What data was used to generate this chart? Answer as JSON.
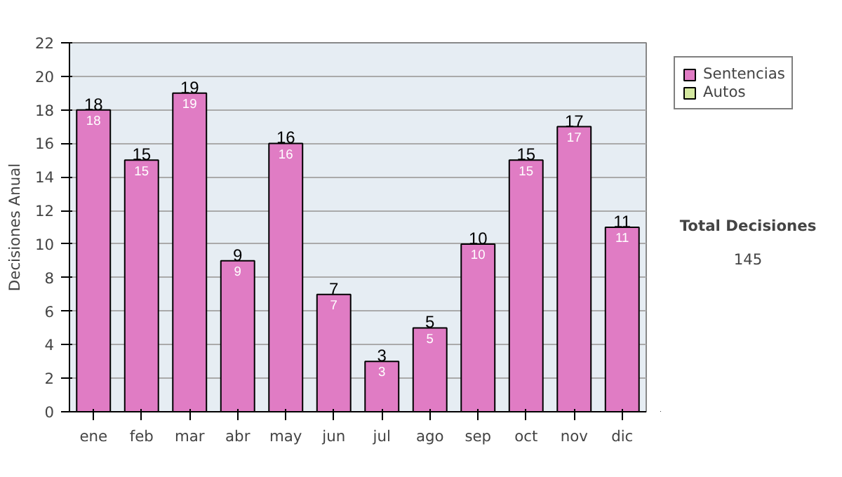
{
  "chart_data": {
    "type": "bar",
    "stacked": true,
    "ylabel": "Decisiones Anual",
    "categories": [
      "ene",
      "feb",
      "mar",
      "abr",
      "may",
      "jun",
      "jul",
      "ago",
      "sep",
      "oct",
      "nov",
      "dic"
    ],
    "series": [
      {
        "name": "Sentencias",
        "color": "#e07cc4",
        "values": [
          18,
          15,
          19,
          9,
          16,
          7,
          3,
          5,
          10,
          15,
          17,
          11
        ]
      },
      {
        "name": "Autos",
        "color": "#d4e8a0",
        "values": [
          null,
          null,
          null,
          null,
          null,
          null,
          null,
          null,
          null,
          null,
          null,
          null
        ]
      }
    ],
    "totals": [
      "18",
      "15",
      "19",
      "9",
      "16",
      "7",
      "3",
      "5",
      "10",
      "15",
      "17",
      "11"
    ],
    "data_labels": true,
    "ylim": [
      0,
      22
    ],
    "yticks": [
      0,
      2,
      4,
      6,
      8,
      10,
      12,
      14,
      16,
      18,
      20,
      22
    ],
    "grid": "y",
    "legend": "right",
    "annotations": [
      "Total Decisiones",
      "145"
    ]
  }
}
